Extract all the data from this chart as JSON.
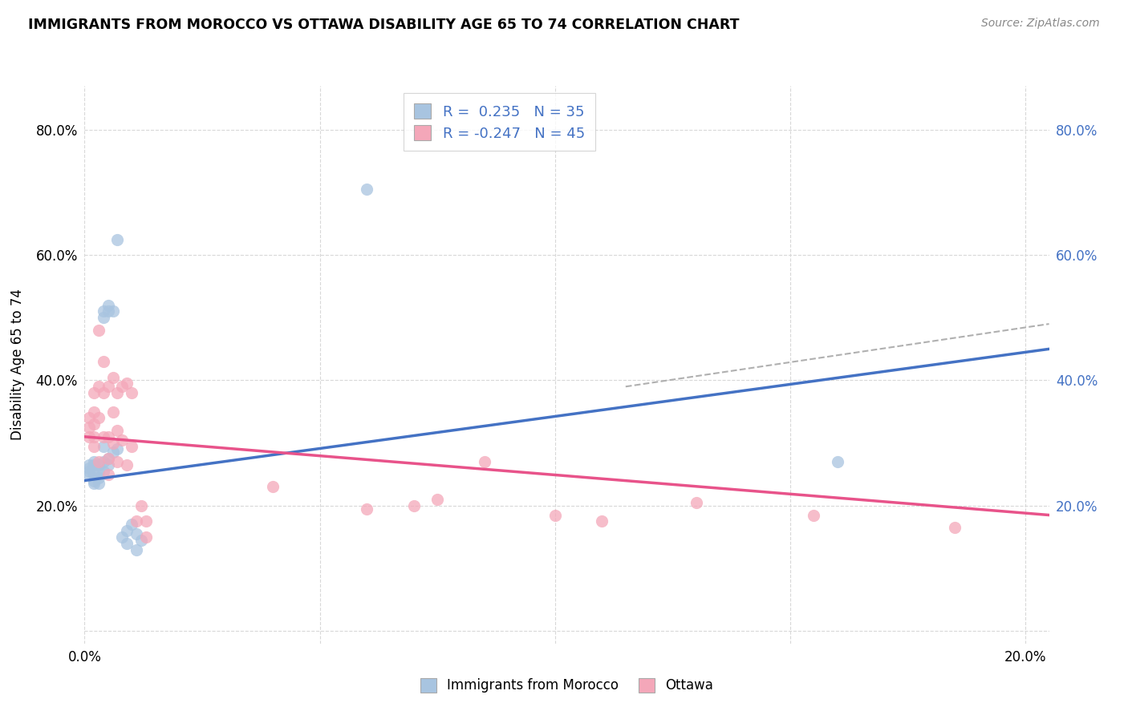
{
  "title": "IMMIGRANTS FROM MOROCCO VS OTTAWA DISABILITY AGE 65 TO 74 CORRELATION CHART",
  "source": "Source: ZipAtlas.com",
  "ylabel": "Disability Age 65 to 74",
  "xlim": [
    0.0,
    0.205
  ],
  "ylim": [
    -0.02,
    0.87
  ],
  "color_blue": "#a8c4e0",
  "color_pink": "#f4a7b9",
  "line_blue": "#4472c4",
  "line_pink": "#e8538a",
  "line_dashed_color": "#b0b0b0",
  "background": "#ffffff",
  "grid_color": "#d8d8d8",
  "right_axis_color": "#4472c4",
  "r_morocco": 0.235,
  "n_morocco": 35,
  "r_ottawa": -0.247,
  "n_ottawa": 45,
  "morocco_x": [
    0.001,
    0.001,
    0.001,
    0.001,
    0.002,
    0.002,
    0.002,
    0.002,
    0.002,
    0.003,
    0.003,
    0.003,
    0.003,
    0.004,
    0.004,
    0.004,
    0.004,
    0.004,
    0.005,
    0.005,
    0.005,
    0.005,
    0.006,
    0.006,
    0.007,
    0.007,
    0.008,
    0.009,
    0.009,
    0.01,
    0.011,
    0.011,
    0.012,
    0.06,
    0.16
  ],
  "morocco_y": [
    0.265,
    0.26,
    0.255,
    0.25,
    0.27,
    0.265,
    0.25,
    0.24,
    0.235,
    0.265,
    0.255,
    0.245,
    0.235,
    0.51,
    0.5,
    0.295,
    0.27,
    0.255,
    0.52,
    0.51,
    0.275,
    0.265,
    0.51,
    0.285,
    0.625,
    0.29,
    0.15,
    0.16,
    0.14,
    0.17,
    0.155,
    0.13,
    0.145,
    0.705,
    0.27
  ],
  "ottawa_x": [
    0.001,
    0.001,
    0.001,
    0.002,
    0.002,
    0.002,
    0.002,
    0.002,
    0.003,
    0.003,
    0.003,
    0.003,
    0.004,
    0.004,
    0.004,
    0.005,
    0.005,
    0.005,
    0.005,
    0.006,
    0.006,
    0.006,
    0.007,
    0.007,
    0.007,
    0.008,
    0.008,
    0.009,
    0.009,
    0.01,
    0.01,
    0.011,
    0.012,
    0.013,
    0.013,
    0.04,
    0.06,
    0.07,
    0.075,
    0.085,
    0.1,
    0.11,
    0.13,
    0.155,
    0.185
  ],
  "ottawa_y": [
    0.34,
    0.325,
    0.31,
    0.38,
    0.35,
    0.33,
    0.31,
    0.295,
    0.48,
    0.39,
    0.34,
    0.27,
    0.43,
    0.38,
    0.31,
    0.39,
    0.31,
    0.275,
    0.25,
    0.405,
    0.35,
    0.3,
    0.38,
    0.32,
    0.27,
    0.39,
    0.305,
    0.395,
    0.265,
    0.38,
    0.295,
    0.175,
    0.2,
    0.175,
    0.15,
    0.23,
    0.195,
    0.2,
    0.21,
    0.27,
    0.185,
    0.175,
    0.205,
    0.185,
    0.165
  ],
  "blue_line_x": [
    0.0,
    0.205
  ],
  "blue_line_y": [
    0.24,
    0.45
  ],
  "pink_line_x": [
    0.0,
    0.205
  ],
  "pink_line_y": [
    0.31,
    0.185
  ],
  "dashed_line_x": [
    0.115,
    0.205
  ],
  "dashed_line_y": [
    0.39,
    0.49
  ],
  "xticks": [
    0.0,
    0.05,
    0.1,
    0.15,
    0.2
  ],
  "xtick_labels": [
    "0.0%",
    "",
    "",
    "",
    "20.0%"
  ],
  "yticks": [
    0.0,
    0.2,
    0.4,
    0.6,
    0.8
  ],
  "ytick_labels_left": [
    "",
    "20.0%",
    "40.0%",
    "60.0%",
    "80.0%"
  ],
  "ytick_labels_right": [
    "",
    "20.0%",
    "40.0%",
    "60.0%",
    "80.0%"
  ],
  "grid_yticks": [
    0.0,
    0.2,
    0.4,
    0.6,
    0.8
  ],
  "grid_xticks": [
    0.0,
    0.05,
    0.1,
    0.15,
    0.2
  ],
  "scatter_size": 120,
  "scatter_alpha": 0.75
}
